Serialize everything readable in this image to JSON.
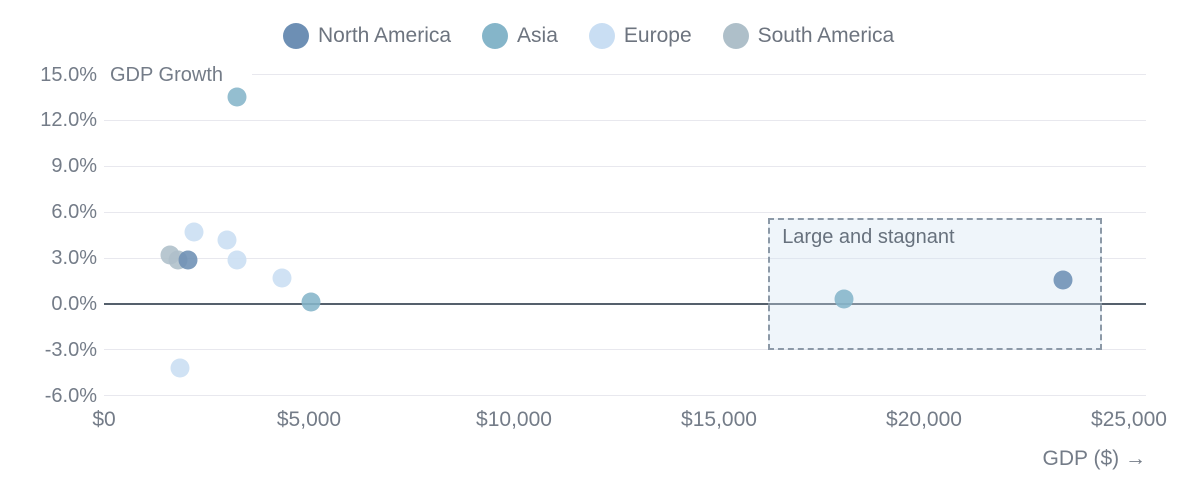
{
  "legend": {
    "items": [
      {
        "label": "North America",
        "color": "#6d8fb4"
      },
      {
        "label": "Asia",
        "color": "#85b5c9"
      },
      {
        "label": "Europe",
        "color": "#c9def3"
      },
      {
        "label": "South America",
        "color": "#aebfc9"
      }
    ]
  },
  "chart_data": {
    "type": "scatter",
    "ylabel": "GDP Growth",
    "xlabel": "GDP ($) →",
    "xlim": [
      0,
      25000
    ],
    "ylim": [
      -6,
      15
    ],
    "grid": "horizontal",
    "yticks": [
      {
        "label": "15.0%",
        "value": 15
      },
      {
        "label": "12.0%",
        "value": 12
      },
      {
        "label": "9.0%",
        "value": 9
      },
      {
        "label": "6.0%",
        "value": 6
      },
      {
        "label": "3.0%",
        "value": 3
      },
      {
        "label": "0.0%",
        "value": 0
      },
      {
        "label": "-3.0%",
        "value": -3
      },
      {
        "label": "-6.0%",
        "value": -6
      }
    ],
    "xticks": [
      {
        "label": "$0",
        "value": 0
      },
      {
        "label": "$5,000",
        "value": 5000
      },
      {
        "label": "$10,000",
        "value": 10000
      },
      {
        "label": "$15,000",
        "value": 15000
      },
      {
        "label": "$20,000",
        "value": 20000
      },
      {
        "label": "$25,000",
        "value": 25000
      }
    ],
    "series": [
      {
        "name": "Europe",
        "color": "#c9def3",
        "points": [
          [
            2200,
            4.7
          ],
          [
            3000,
            4.2
          ],
          [
            3250,
            2.9
          ],
          [
            4350,
            1.7
          ],
          [
            1850,
            -4.2
          ]
        ]
      },
      {
        "name": "South America",
        "color": "#aebfc9",
        "points": [
          [
            1600,
            3.2
          ],
          [
            1800,
            2.9
          ]
        ]
      },
      {
        "name": "North America",
        "color": "#6d8fb4",
        "points": [
          [
            2050,
            2.9
          ],
          [
            23400,
            1.6
          ]
        ]
      },
      {
        "name": "Asia",
        "color": "#85b5c9",
        "points": [
          [
            3250,
            13.5
          ],
          [
            5050,
            0.1
          ],
          [
            18050,
            0.3
          ]
        ]
      }
    ],
    "annotation": {
      "label": "Large and stagnant",
      "x0": 16200,
      "x1": 24350,
      "y0": -3.0,
      "y1": 5.6
    }
  }
}
